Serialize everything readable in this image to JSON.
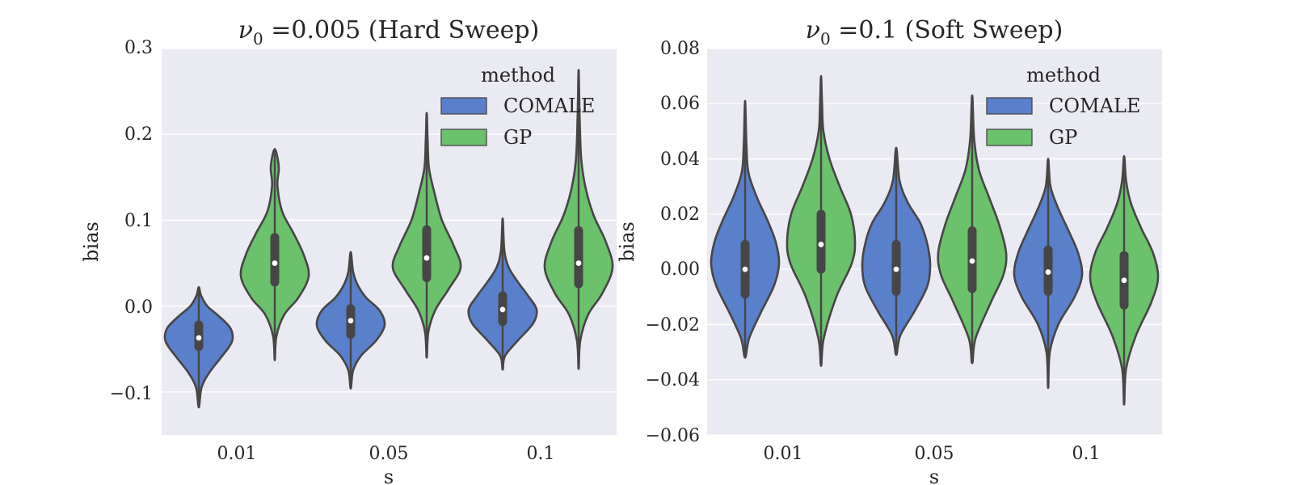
{
  "chart_data": [
    {
      "type": "violin",
      "title": {
        "symbol": "ν",
        "subscript": "0",
        "rest": " =0.005 (Hard Sweep)"
      },
      "xlabel": "s",
      "ylabel": "bias",
      "categories": [
        "0.01",
        "0.05",
        "0.1"
      ],
      "ylim": [
        -0.15,
        0.3
      ],
      "yticks": [
        -0.1,
        0.0,
        0.1,
        0.2,
        0.3
      ],
      "ytick_labels": [
        "−0.1",
        "0.0",
        "0.1",
        "0.2",
        "0.3"
      ],
      "grid": true,
      "legend": {
        "title": "method",
        "position": "top-right",
        "entries": [
          "COMALE",
          "GP"
        ]
      },
      "series": [
        {
          "name": "COMALE",
          "color": "#5A7FCB",
          "stats": [
            {
              "min": -0.118,
              "q1": -0.047,
              "median": -0.037,
              "q3": -0.022,
              "max": 0.022,
              "profile": [
                [
                  -0.118,
                  0
                ],
                [
                  -0.095,
                  0.08
                ],
                [
                  -0.078,
                  0.3
                ],
                [
                  -0.06,
                  0.65
                ],
                [
                  -0.047,
                  0.9
                ],
                [
                  -0.037,
                  1.0
                ],
                [
                  -0.025,
                  0.92
                ],
                [
                  -0.012,
                  0.6
                ],
                [
                  0.0,
                  0.25
                ],
                [
                  0.012,
                  0.07
                ],
                [
                  0.022,
                  0
                ]
              ]
            },
            {
              "min": -0.096,
              "q1": -0.033,
              "median": -0.017,
              "q3": -0.003,
              "max": 0.063,
              "profile": [
                [
                  -0.096,
                  0
                ],
                [
                  -0.075,
                  0.07
                ],
                [
                  -0.058,
                  0.3
                ],
                [
                  -0.04,
                  0.75
                ],
                [
                  -0.022,
                  1.0
                ],
                [
                  -0.005,
                  0.85
                ],
                [
                  0.01,
                  0.45
                ],
                [
                  0.025,
                  0.2
                ],
                [
                  0.04,
                  0.07
                ],
                [
                  0.063,
                  0
                ]
              ]
            },
            {
              "min": -0.074,
              "q1": -0.018,
              "median": -0.004,
              "q3": 0.012,
              "max": 0.102,
              "profile": [
                [
                  -0.074,
                  0
                ],
                [
                  -0.058,
                  0.07
                ],
                [
                  -0.04,
                  0.45
                ],
                [
                  -0.02,
                  0.9
                ],
                [
                  -0.004,
                  1.0
                ],
                [
                  0.012,
                  0.75
                ],
                [
                  0.028,
                  0.45
                ],
                [
                  0.045,
                  0.18
                ],
                [
                  0.065,
                  0.05
                ],
                [
                  0.102,
                  0
                ]
              ]
            }
          ]
        },
        {
          "name": "GP",
          "color": "#6CC16C",
          "stats": [
            {
              "min": -0.063,
              "q1": 0.028,
              "median": 0.05,
              "q3": 0.08,
              "max": 0.183,
              "profile": [
                [
                  -0.063,
                  0
                ],
                [
                  -0.035,
                  0.05
                ],
                [
                  -0.01,
                  0.28
                ],
                [
                  0.01,
                  0.7
                ],
                [
                  0.035,
                  1.0
                ],
                [
                  0.06,
                  0.85
                ],
                [
                  0.085,
                  0.55
                ],
                [
                  0.11,
                  0.22
                ],
                [
                  0.14,
                  0.08
                ],
                [
                  0.16,
                  0.12
                ],
                [
                  0.175,
                  0.07
                ],
                [
                  0.183,
                  0
                ]
              ]
            },
            {
              "min": -0.06,
              "q1": 0.033,
              "median": 0.056,
              "q3": 0.089,
              "max": 0.225,
              "profile": [
                [
                  -0.06,
                  0
                ],
                [
                  -0.03,
                  0.05
                ],
                [
                  -0.005,
                  0.25
                ],
                [
                  0.02,
                  0.65
                ],
                [
                  0.045,
                  1.0
                ],
                [
                  0.07,
                  0.8
                ],
                [
                  0.1,
                  0.45
                ],
                [
                  0.13,
                  0.24
                ],
                [
                  0.16,
                  0.07
                ],
                [
                  0.19,
                  0.03
                ],
                [
                  0.225,
                  0
                ]
              ]
            },
            {
              "min": -0.073,
              "q1": 0.026,
              "median": 0.05,
              "q3": 0.088,
              "max": 0.275,
              "profile": [
                [
                  -0.073,
                  0
                ],
                [
                  -0.04,
                  0.05
                ],
                [
                  -0.01,
                  0.28
                ],
                [
                  0.015,
                  0.7
                ],
                [
                  0.045,
                  1.0
                ],
                [
                  0.075,
                  0.8
                ],
                [
                  0.105,
                  0.45
                ],
                [
                  0.135,
                  0.22
                ],
                [
                  0.17,
                  0.08
                ],
                [
                  0.22,
                  0.03
                ],
                [
                  0.275,
                  0
                ]
              ]
            }
          ]
        }
      ]
    },
    {
      "type": "violin",
      "title": {
        "symbol": "ν",
        "subscript": "0",
        "rest": " =0.1 (Soft Sweep)"
      },
      "xlabel": "s",
      "ylabel": "bias",
      "categories": [
        "0.01",
        "0.05",
        "0.1"
      ],
      "ylim": [
        -0.06,
        0.08
      ],
      "yticks": [
        -0.06,
        -0.04,
        -0.02,
        0.0,
        0.02,
        0.04,
        0.06,
        0.08
      ],
      "ytick_labels": [
        "−0.06",
        "−0.04",
        "−0.02",
        "0.00",
        "0.02",
        "0.04",
        "0.06",
        "0.08"
      ],
      "grid": true,
      "legend": {
        "title": "method",
        "position": "top-right",
        "entries": [
          "COMALE",
          "GP"
        ]
      },
      "series": [
        {
          "name": "COMALE",
          "color": "#5A7FCB",
          "stats": [
            {
              "min": -0.032,
              "q1": -0.009,
              "median": 0.0,
              "q3": 0.009,
              "max": 0.061,
              "profile": [
                [
                  -0.032,
                  0
                ],
                [
                  -0.025,
                  0.12
                ],
                [
                  -0.016,
                  0.45
                ],
                [
                  -0.006,
                  0.85
                ],
                [
                  0.002,
                  1.0
                ],
                [
                  0.01,
                  0.9
                ],
                [
                  0.018,
                  0.65
                ],
                [
                  0.026,
                  0.35
                ],
                [
                  0.035,
                  0.1
                ],
                [
                  0.045,
                  0.04
                ],
                [
                  0.061,
                  0
                ]
              ]
            },
            {
              "min": -0.031,
              "q1": -0.008,
              "median": 0.0,
              "q3": 0.009,
              "max": 0.044,
              "profile": [
                [
                  -0.031,
                  0
                ],
                [
                  -0.024,
                  0.12
                ],
                [
                  -0.015,
                  0.55
                ],
                [
                  -0.006,
                  0.92
                ],
                [
                  0.002,
                  1.0
                ],
                [
                  0.01,
                  0.9
                ],
                [
                  0.017,
                  0.7
                ],
                [
                  0.024,
                  0.35
                ],
                [
                  0.032,
                  0.1
                ],
                [
                  0.044,
                  0
                ]
              ]
            },
            {
              "min": -0.043,
              "q1": -0.008,
              "median": -0.001,
              "q3": 0.007,
              "max": 0.04,
              "profile": [
                [
                  -0.043,
                  0
                ],
                [
                  -0.03,
                  0.05
                ],
                [
                  -0.02,
                  0.3
                ],
                [
                  -0.01,
                  0.78
                ],
                [
                  -0.002,
                  1.0
                ],
                [
                  0.006,
                  0.88
                ],
                [
                  0.014,
                  0.6
                ],
                [
                  0.022,
                  0.3
                ],
                [
                  0.03,
                  0.07
                ],
                [
                  0.04,
                  0
                ]
              ]
            }
          ]
        },
        {
          "name": "GP",
          "color": "#6CC16C",
          "stats": [
            {
              "min": -0.035,
              "q1": 0.0,
              "median": 0.009,
              "q3": 0.02,
              "max": 0.07,
              "profile": [
                [
                  -0.035,
                  0
                ],
                [
                  -0.025,
                  0.08
                ],
                [
                  -0.01,
                  0.45
                ],
                [
                  0.002,
                  0.9
                ],
                [
                  0.01,
                  1.0
                ],
                [
                  0.02,
                  0.88
                ],
                [
                  0.03,
                  0.55
                ],
                [
                  0.04,
                  0.25
                ],
                [
                  0.05,
                  0.07
                ],
                [
                  0.06,
                  0.03
                ],
                [
                  0.07,
                  0
                ]
              ]
            },
            {
              "min": -0.034,
              "q1": -0.007,
              "median": 0.003,
              "q3": 0.014,
              "max": 0.063,
              "profile": [
                [
                  -0.034,
                  0
                ],
                [
                  -0.025,
                  0.1
                ],
                [
                  -0.012,
                  0.55
                ],
                [
                  -0.002,
                  0.92
                ],
                [
                  0.006,
                  1.0
                ],
                [
                  0.016,
                  0.8
                ],
                [
                  0.026,
                  0.5
                ],
                [
                  0.036,
                  0.2
                ],
                [
                  0.047,
                  0.06
                ],
                [
                  0.063,
                  0
                ]
              ]
            },
            {
              "min": -0.049,
              "q1": -0.013,
              "median": -0.004,
              "q3": 0.005,
              "max": 0.041,
              "profile": [
                [
                  -0.049,
                  0
                ],
                [
                  -0.036,
                  0.06
                ],
                [
                  -0.024,
                  0.35
                ],
                [
                  -0.012,
                  0.8
                ],
                [
                  -0.003,
                  1.0
                ],
                [
                  0.006,
                  0.85
                ],
                [
                  0.015,
                  0.5
                ],
                [
                  0.024,
                  0.2
                ],
                [
                  0.032,
                  0.06
                ],
                [
                  0.041,
                  0
                ]
              ]
            }
          ]
        }
      ]
    }
  ]
}
